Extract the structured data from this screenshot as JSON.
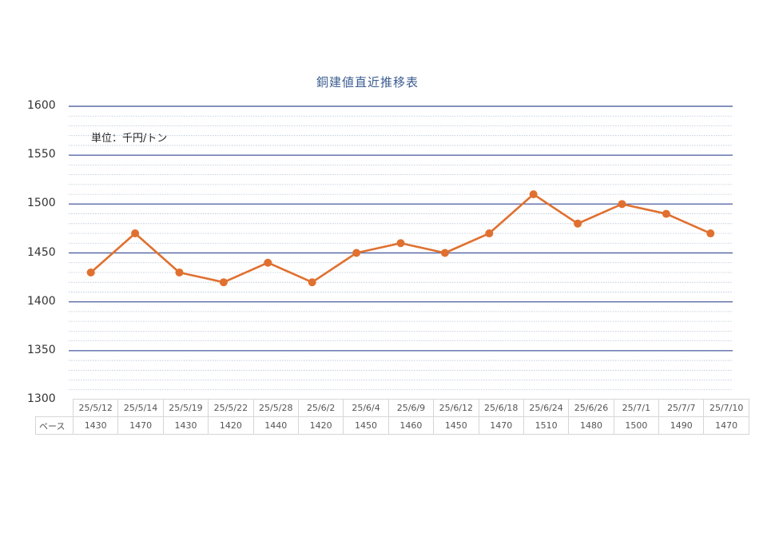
{
  "chart_data": {
    "type": "line",
    "title": "銅建値直近推移表",
    "unit_note": "単位：千円/トン",
    "categories": [
      "25/5/12",
      "25/5/14",
      "25/5/19",
      "25/5/22",
      "25/5/28",
      "25/6/2",
      "25/6/4",
      "25/6/9",
      "25/6/12",
      "25/6/18",
      "25/6/24",
      "25/6/26",
      "25/7/1",
      "25/7/7",
      "25/7/10"
    ],
    "series": [
      {
        "name": "ベース",
        "values": [
          1430,
          1470,
          1430,
          1420,
          1440,
          1420,
          1450,
          1460,
          1450,
          1470,
          1510,
          1480,
          1500,
          1490,
          1470
        ],
        "color": "#e07030"
      }
    ],
    "ylim": [
      1300,
      1600
    ],
    "yticks": [
      1300,
      1350,
      1400,
      1450,
      1500,
      1550,
      1600
    ],
    "minor_tick_step": 10,
    "grid": true,
    "legend": "data-table-below",
    "colors": {
      "major_grid": "#5a6aa8",
      "minor_grid": "#b8c4d4",
      "title": "#3b5c8f"
    }
  }
}
